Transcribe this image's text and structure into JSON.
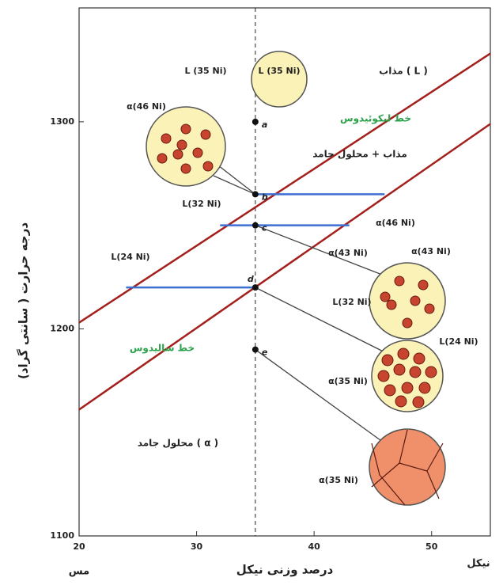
{
  "chart_data": {
    "type": "line",
    "xlabel": "درصد وزنی نیکل",
    "ylabel": "درجه حرارت ( سانتی گراد)",
    "xmin_label": "مس",
    "xmax_label": "نیکل",
    "xlim": [
      20,
      55
    ],
    "ylim": [
      1100,
      1355
    ],
    "xticks": [
      20,
      30,
      40,
      50
    ],
    "yticks": [
      1100,
      1200,
      1300
    ],
    "series": [
      {
        "name": "خط لیکوئیدوس",
        "color": "#a3201c",
        "x": [
          20,
          55
        ],
        "y": [
          1203,
          1333
        ]
      },
      {
        "name": "خط سالیدوس",
        "color": "#a3201c",
        "x": [
          20,
          55
        ],
        "y": [
          1161,
          1299
        ]
      }
    ],
    "tie_lines": [
      {
        "x": [
          35,
          46
        ],
        "y": 1265,
        "color": "#3d6fd1"
      },
      {
        "x": [
          32,
          43
        ],
        "y": 1250,
        "color": "#3d6fd1"
      },
      {
        "x": [
          24,
          35
        ],
        "y": 1220,
        "color": "#3d6fd1"
      }
    ],
    "composition": 35,
    "points": [
      {
        "label": "a",
        "x": 35,
        "y": 1300
      },
      {
        "label": "b",
        "x": 35,
        "y": 1265
      },
      {
        "label": "c",
        "x": 35,
        "y": 1250
      },
      {
        "label": "d",
        "x": 35,
        "y": 1220
      },
      {
        "label": "e",
        "x": 35,
        "y": 1190
      }
    ],
    "regions": [
      "مذاب ( L )",
      "مذاب + محلول جامد",
      "محلول جامد ( α )"
    ],
    "annotations": [
      "L (35 Ni)",
      "L (35 Ni)",
      "α(46 Ni)",
      "L(32 Ni)",
      "α(46 Ni)",
      "α(43 Ni)",
      "α(43 Ni)",
      "L(32 Ni)",
      "L(24 Ni)",
      "L(24 Ni)",
      "α(35 Ni)",
      "α(35 Ni)"
    ]
  }
}
